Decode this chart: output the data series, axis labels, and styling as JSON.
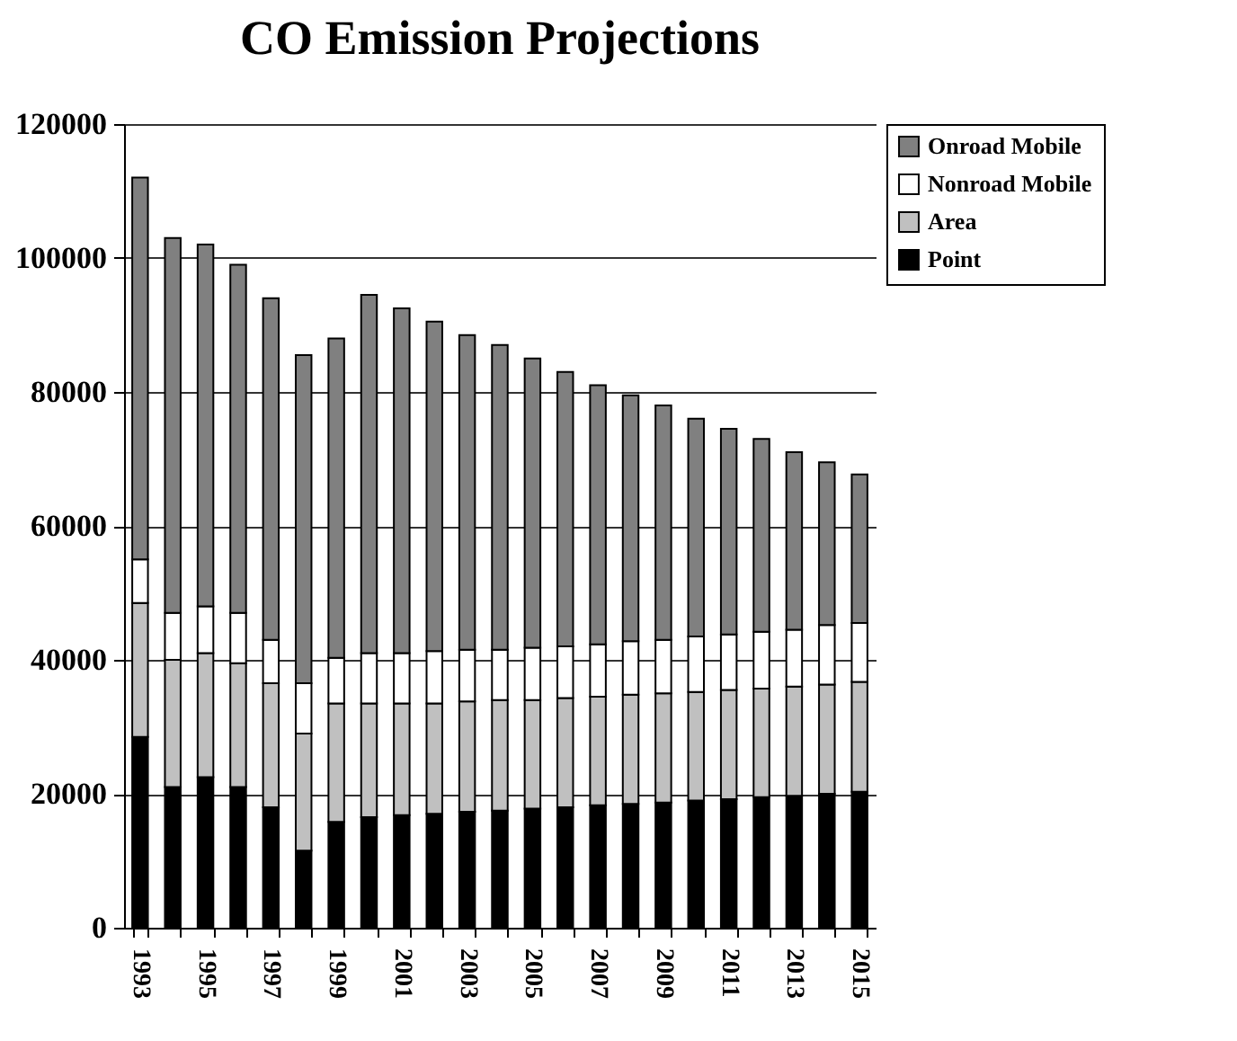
{
  "chart_data": {
    "type": "bar",
    "title": "CO Emission Projections",
    "stacked": true,
    "categories": [
      "1993",
      null,
      "1995",
      null,
      "1997",
      null,
      "1999",
      null,
      "2001",
      null,
      "2003",
      null,
      "2005",
      null,
      "2007",
      null,
      "2009",
      null,
      "2011",
      null,
      "2013",
      null,
      "2015"
    ],
    "series": [
      {
        "name": "Point",
        "color": "#000000",
        "values": [
          28500,
          21000,
          22500,
          21000,
          18000,
          11500,
          15800,
          16500,
          16800,
          17000,
          17300,
          17500,
          17800,
          18000,
          18300,
          18500,
          18700,
          19000,
          19200,
          19500,
          19700,
          20000,
          20300
        ]
      },
      {
        "name": "Area",
        "color": "#c0c0c0",
        "values": [
          20000,
          19000,
          18500,
          18500,
          18500,
          17500,
          17700,
          17000,
          16700,
          16500,
          16500,
          16500,
          16200,
          16300,
          16200,
          16300,
          16300,
          16200,
          16300,
          16200,
          16300,
          16300,
          16400
        ]
      },
      {
        "name": "Nonroad Mobile",
        "color": "#ffffff",
        "values": [
          6500,
          7000,
          7000,
          7500,
          6500,
          7500,
          6800,
          7500,
          7500,
          7800,
          7700,
          7500,
          7800,
          7700,
          7800,
          8000,
          8000,
          8300,
          8300,
          8500,
          8500,
          8900,
          8800
        ]
      },
      {
        "name": "Onroad Mobile",
        "color": "#808080",
        "values": [
          57000,
          56000,
          54000,
          52000,
          51000,
          49000,
          47700,
          53500,
          51500,
          49200,
          47000,
          45500,
          43200,
          41000,
          38700,
          36700,
          35000,
          32500,
          30700,
          28800,
          26500,
          24300,
          22200
        ]
      }
    ],
    "ylim": [
      0,
      120000
    ],
    "yticks": [
      0,
      20000,
      40000,
      60000,
      80000,
      100000,
      120000
    ],
    "grid": "y",
    "legend": "right"
  }
}
